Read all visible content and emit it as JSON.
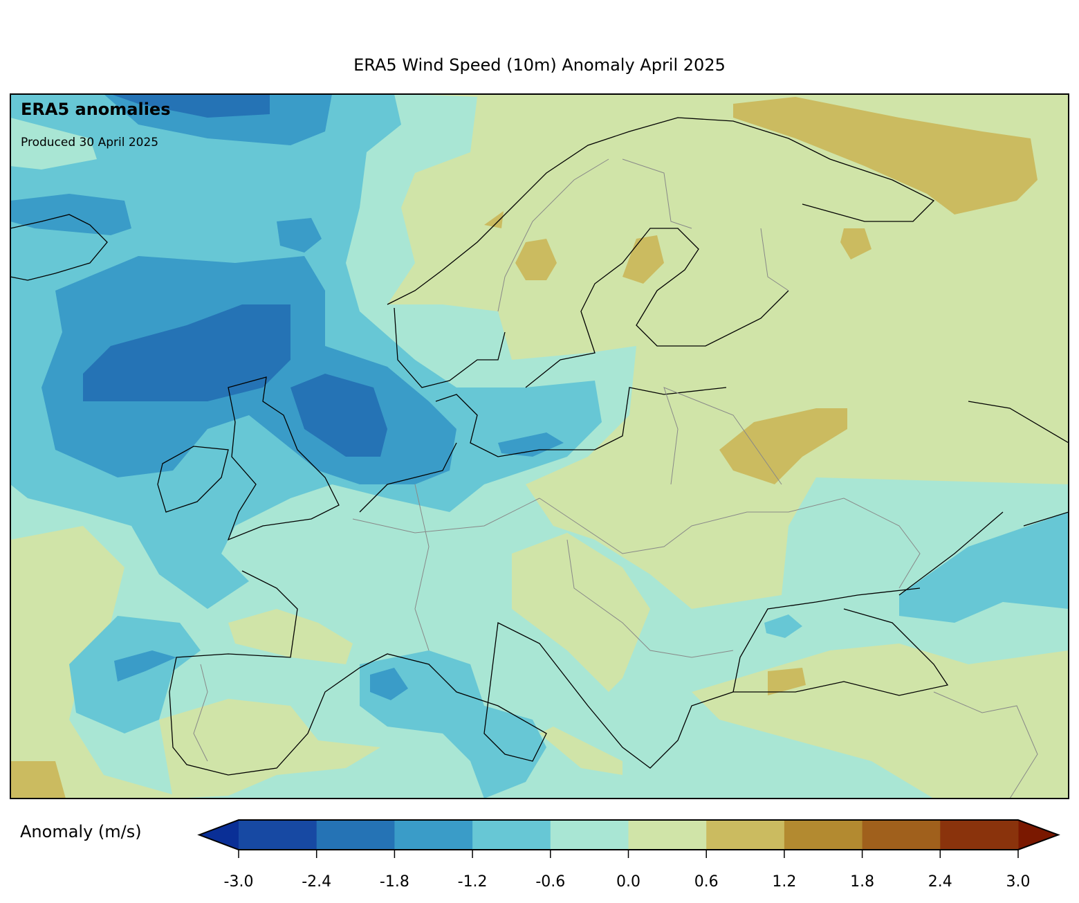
{
  "title": "ERA5 Wind Speed (10m) Anomaly April 2025",
  "annotation": {
    "heading": "ERA5 anomalies",
    "produced": "Produced 30 April 2025"
  },
  "chart_data": {
    "type": "heatmap",
    "title": "ERA5 Wind Speed (10m) Anomaly April 2025",
    "colorbar": {
      "label": "Anomaly (m/s)",
      "levels": [
        -3.0,
        -2.4,
        -1.8,
        -1.2,
        -0.6,
        0.0,
        0.6,
        1.2,
        1.8,
        2.4,
        3.0
      ],
      "tick_labels": [
        "-3.0",
        "-2.4",
        "-1.8",
        "-1.2",
        "-0.6",
        "0.0",
        "0.6",
        "1.2",
        "1.8",
        "2.4",
        "3.0"
      ],
      "colors": [
        "#1749a3",
        "#2573b5",
        "#3a9cc8",
        "#67c7d5",
        "#a9e6d4",
        "#d0e4a8",
        "#cbbb60",
        "#b38a30",
        "#a0601c",
        "#8a330c"
      ],
      "extend_low_color": "#0a2f96",
      "extend_high_color": "#7a1800",
      "extend": "both",
      "orientation": "horizontal",
      "placement": "bottom"
    }
  }
}
